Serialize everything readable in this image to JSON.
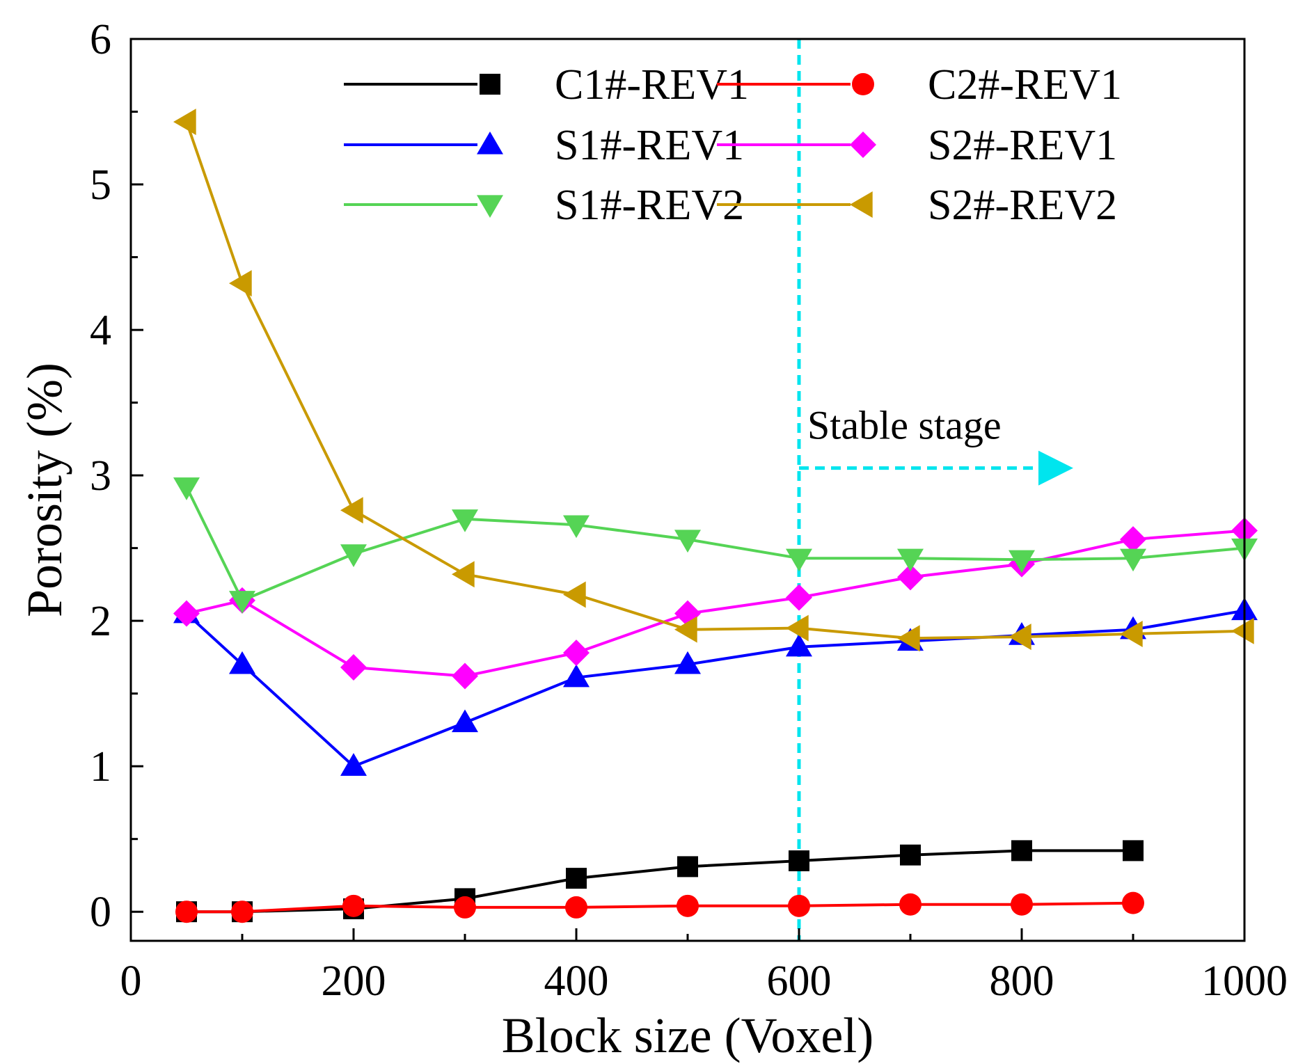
{
  "chart_data": {
    "type": "line",
    "xlabel": "Block size (Voxel)",
    "ylabel": "Porosity (%)",
    "xlim": [
      0,
      1000
    ],
    "ylim": [
      -0.2,
      6
    ],
    "xticks": [
      "0",
      "200",
      "400",
      "600",
      "800",
      "1000"
    ],
    "yticks": [
      "0",
      "1",
      "2",
      "3",
      "4",
      "5",
      "6"
    ],
    "grid": false,
    "legend_position": "top-right",
    "series": [
      {
        "name": "C1#-REV1",
        "color": "#000000",
        "marker": "square",
        "x": [
          50,
          100,
          200,
          300,
          400,
          500,
          600,
          700,
          800,
          900
        ],
        "y": [
          0.0,
          0.0,
          0.02,
          0.09,
          0.23,
          0.31,
          0.35,
          0.39,
          0.42,
          0.42
        ]
      },
      {
        "name": "C2#-REV1",
        "color": "#ff0000",
        "marker": "circle",
        "x": [
          50,
          100,
          200,
          300,
          400,
          500,
          600,
          700,
          800,
          900
        ],
        "y": [
          0.0,
          0.0,
          0.04,
          0.03,
          0.03,
          0.04,
          0.04,
          0.05,
          0.05,
          0.06
        ]
      },
      {
        "name": "S1#-REV1",
        "color": "#0000ff",
        "marker": "triangle-up",
        "x": [
          50,
          100,
          200,
          300,
          400,
          500,
          600,
          700,
          800,
          900,
          1000
        ],
        "y": [
          2.05,
          1.7,
          1.0,
          1.3,
          1.61,
          1.7,
          1.82,
          1.86,
          1.9,
          1.94,
          2.07
        ]
      },
      {
        "name": "S2#-REV1",
        "color": "#ff00ff",
        "marker": "diamond",
        "x": [
          50,
          100,
          200,
          300,
          400,
          500,
          600,
          700,
          800,
          900,
          1000
        ],
        "y": [
          2.05,
          2.14,
          1.68,
          1.62,
          1.78,
          2.05,
          2.16,
          2.3,
          2.39,
          2.56,
          2.62
        ]
      },
      {
        "name": "S1#-REV2",
        "color": "#55d455",
        "marker": "triangle-down",
        "x": [
          50,
          100,
          200,
          300,
          400,
          500,
          600,
          700,
          800,
          900,
          1000
        ],
        "y": [
          2.92,
          2.14,
          2.46,
          2.7,
          2.66,
          2.56,
          2.43,
          2.43,
          2.42,
          2.43,
          2.5
        ]
      },
      {
        "name": "S2#-REV2",
        "color": "#c99a00",
        "marker": "triangle-left",
        "x": [
          50,
          100,
          200,
          300,
          400,
          500,
          600,
          700,
          800,
          900,
          1000
        ],
        "y": [
          5.43,
          4.32,
          2.76,
          2.32,
          2.18,
          1.94,
          1.95,
          1.88,
          1.89,
          1.91,
          1.93
        ]
      }
    ],
    "annotations": [
      {
        "text": "Stable stage",
        "vline_x": 600,
        "arrow_from_x": 600,
        "arrow_to_x": 840,
        "arrow_y": 3.05,
        "color": "#00e5ee"
      }
    ]
  }
}
